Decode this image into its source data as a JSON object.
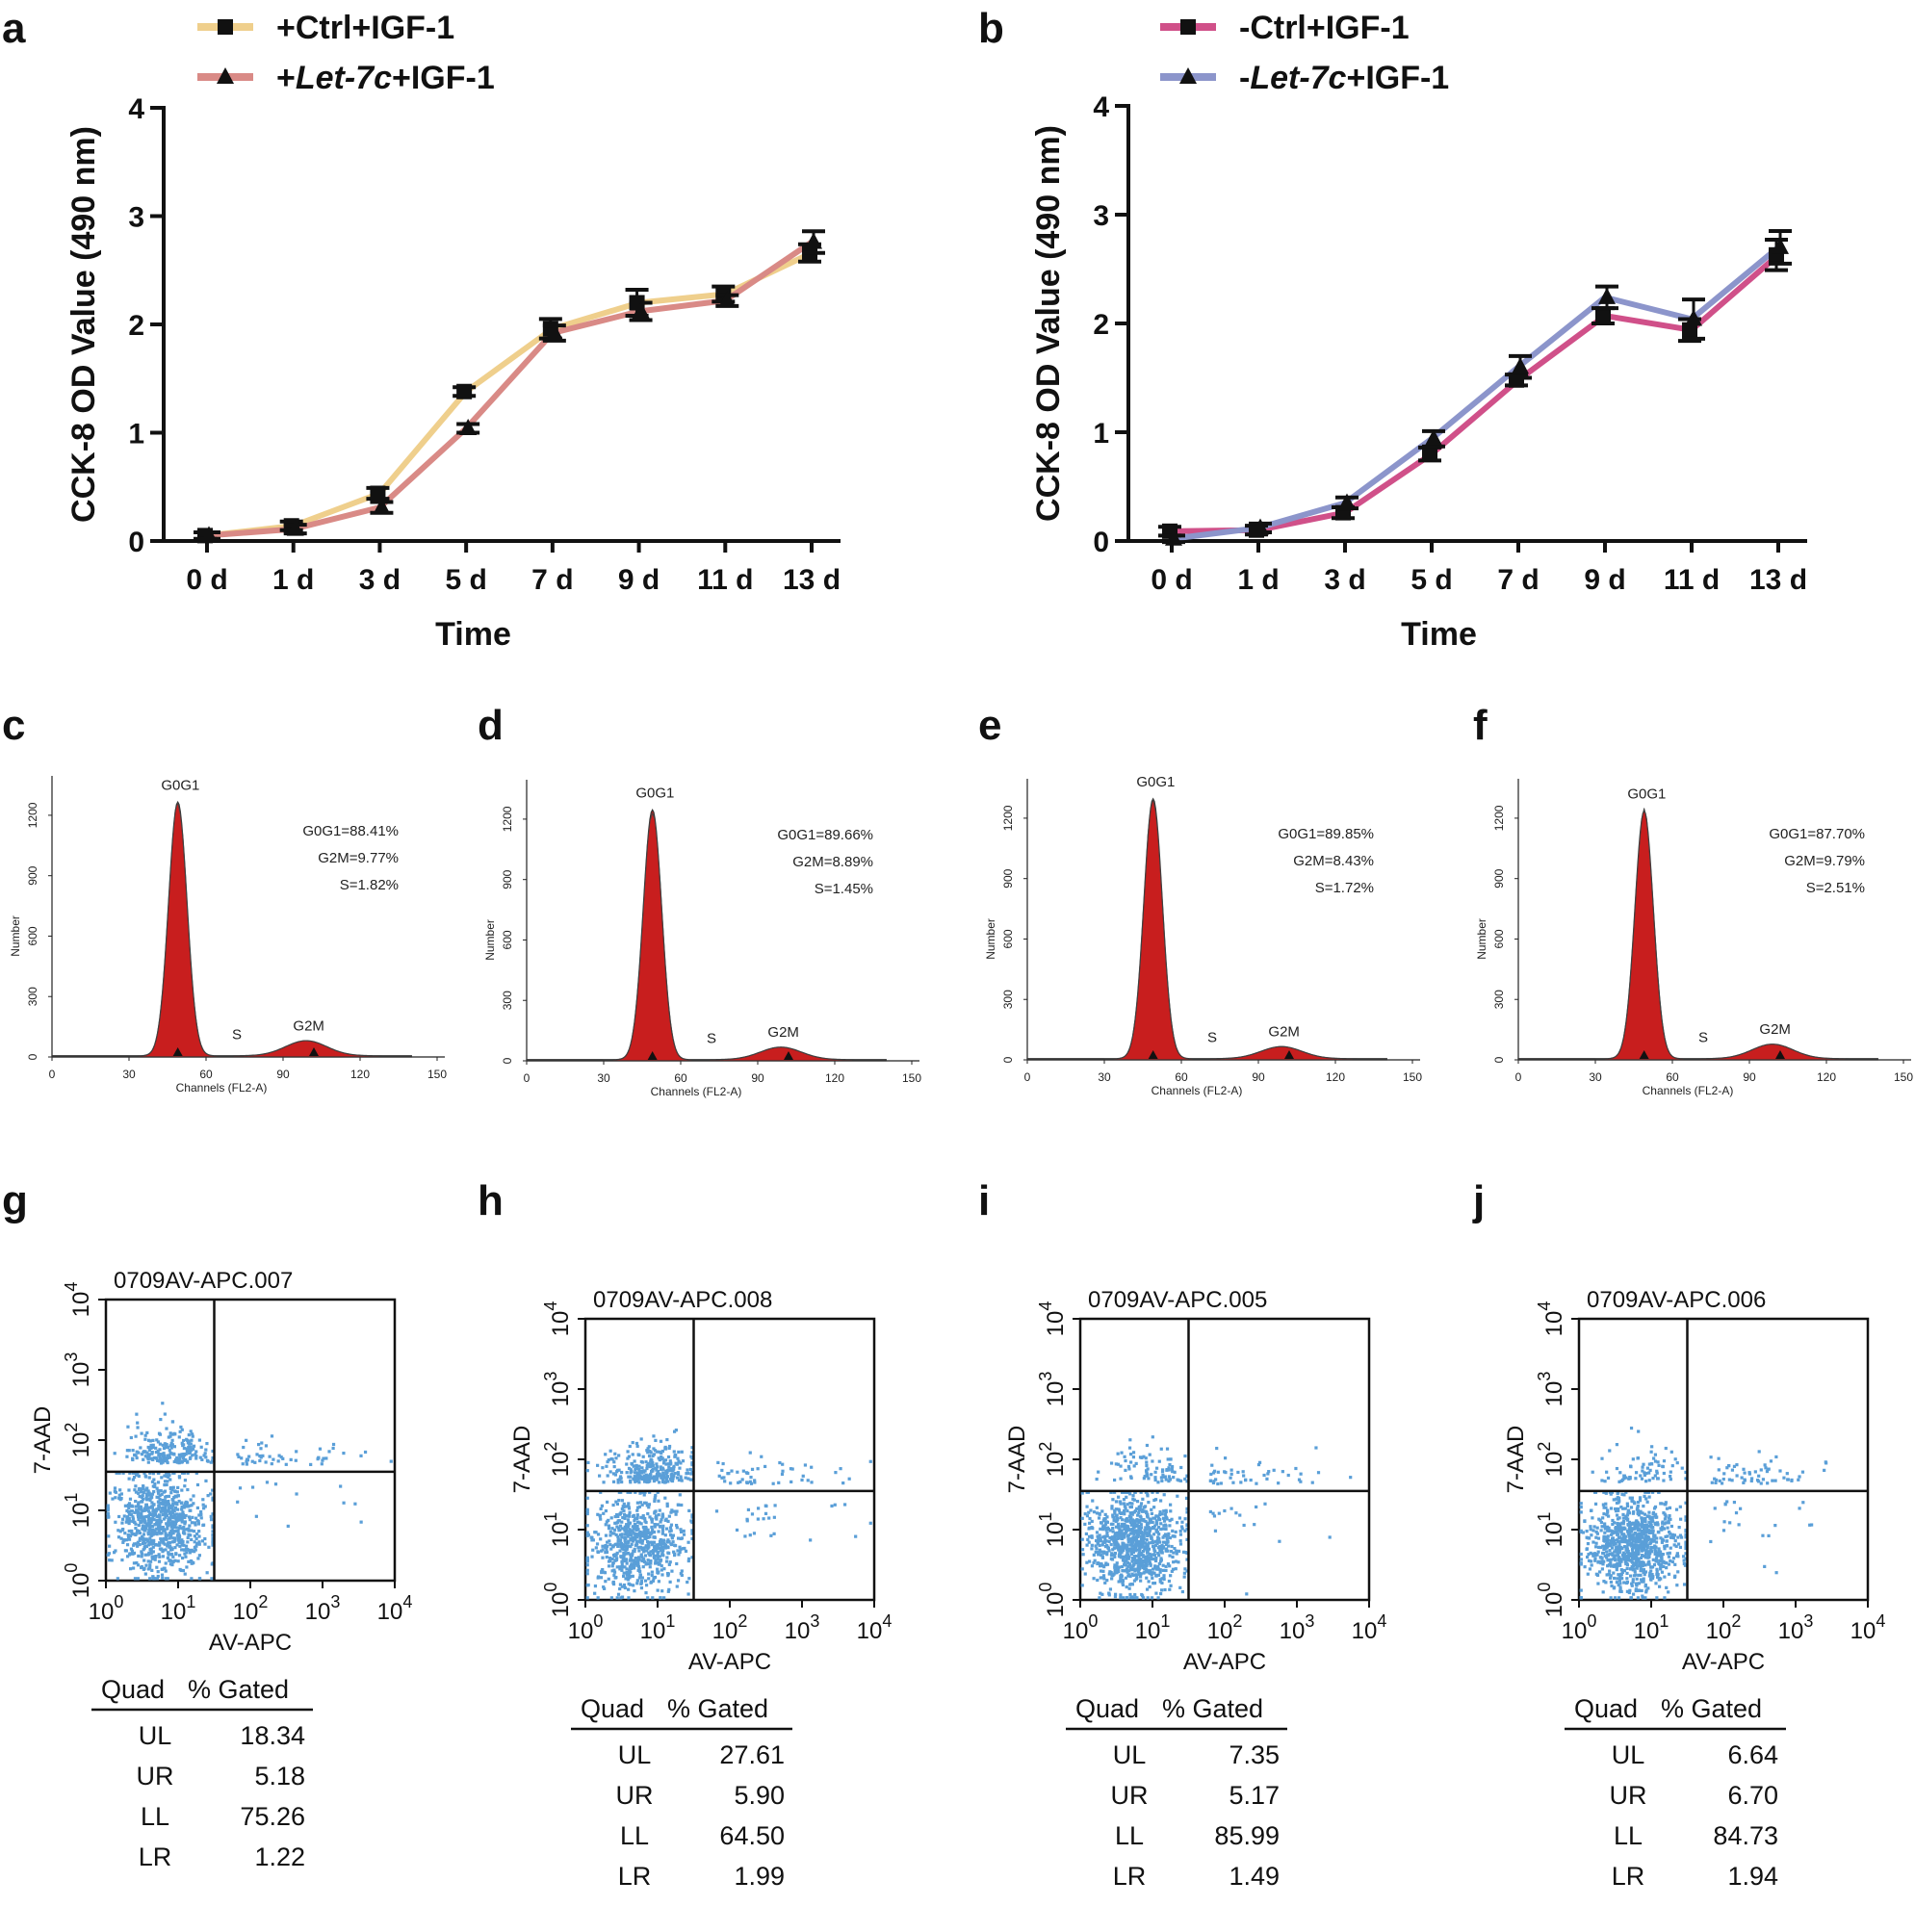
{
  "panel_labels": [
    "a",
    "b",
    "c",
    "d",
    "e",
    "f",
    "g",
    "h",
    "i",
    "j"
  ],
  "chart_data": [
    {
      "panel": "a",
      "type": "line",
      "categories": [
        "0 d",
        "1 d",
        "3 d",
        "5 d",
        "7 d",
        "9 d",
        "11 d",
        "13 d"
      ],
      "xlabel": "Time",
      "ylabel": "CCK-8 OD Value (490 nm)",
      "ylim": [
        0,
        4
      ],
      "yticks": [
        "0",
        "1",
        "2",
        "3",
        "4"
      ],
      "series": [
        {
          "name_prefix": "+Ctrl+IGF-1",
          "name_italic": "",
          "name_suffix": "",
          "marker": "square",
          "color": "#EFCF8C",
          "values": [
            0.05,
            0.14,
            0.44,
            1.38,
            1.96,
            2.2,
            2.28,
            2.66
          ],
          "errors": [
            0.03,
            0.04,
            0.05,
            0.04,
            0.09,
            0.12,
            0.07,
            0.08
          ]
        },
        {
          "name_prefix": "+",
          "name_italic": "Let-7c",
          "name_suffix": "+IGF-1",
          "marker": "triangle",
          "color": "#D98A86",
          "values": [
            0.05,
            0.11,
            0.31,
            1.04,
            1.92,
            2.12,
            2.22,
            2.76
          ],
          "errors": [
            0.03,
            0.04,
            0.05,
            0.04,
            0.07,
            0.08,
            0.05,
            0.1
          ]
        }
      ]
    },
    {
      "panel": "b",
      "type": "line",
      "categories": [
        "0 d",
        "1 d",
        "3 d",
        "5 d",
        "7 d",
        "9 d",
        "11 d",
        "13 d"
      ],
      "xlabel": "Time",
      "ylabel": "CCK-8 OD Value (490 nm)",
      "ylim": [
        0,
        4
      ],
      "yticks": [
        "0",
        "1",
        "2",
        "3",
        "4"
      ],
      "series": [
        {
          "name_prefix": "-Ctrl+IGF-1",
          "name_italic": "",
          "name_suffix": "",
          "marker": "square",
          "color": "#D05089",
          "values": [
            0.09,
            0.1,
            0.26,
            0.8,
            1.48,
            2.07,
            1.94,
            2.63
          ],
          "errors": [
            0.04,
            0.04,
            0.05,
            0.06,
            0.05,
            0.07,
            0.1,
            0.14
          ]
        },
        {
          "name_prefix": "-",
          "name_italic": "Let-7c",
          "name_suffix": "+IGF-1",
          "marker": "triangle",
          "color": "#8C95CB",
          "values": [
            0.02,
            0.12,
            0.35,
            0.94,
            1.6,
            2.24,
            2.04,
            2.7
          ],
          "errors": [
            0.03,
            0.04,
            0.05,
            0.07,
            0.1,
            0.1,
            0.18,
            0.15
          ]
        }
      ]
    },
    {
      "panel": "c",
      "type": "histogram",
      "xlabel": "Channels (FL2-A)",
      "ylabel": "Number",
      "xticks": [
        "0",
        "30",
        "60",
        "90",
        "120",
        "150"
      ],
      "yticks": [
        "0",
        "300",
        "600",
        "900",
        "1200"
      ],
      "peaks": {
        "g0g1": "G0G1",
        "s": "S",
        "g2m": "G2M"
      },
      "stats": [
        "G0G1=88.41%",
        "G2M=9.77%",
        "S=1.82%"
      ],
      "g0g1_height": 1260,
      "g2m_height": 75
    },
    {
      "panel": "d",
      "type": "histogram",
      "xlabel": "Channels (FL2-A)",
      "ylabel": "Number",
      "xticks": [
        "0",
        "30",
        "60",
        "90",
        "120",
        "150"
      ],
      "yticks": [
        "0",
        "300",
        "600",
        "900",
        "1200"
      ],
      "peaks": {
        "g0g1": "G0G1",
        "s": "S",
        "g2m": "G2M"
      },
      "stats": [
        "G0G1=89.66%",
        "G2M=8.89%",
        "S=1.45%"
      ],
      "g0g1_height": 1240,
      "g2m_height": 62
    },
    {
      "panel": "e",
      "type": "histogram",
      "xlabel": "Channels (FL2-A)",
      "ylabel": "Number",
      "xticks": [
        "0",
        "30",
        "60",
        "90",
        "120",
        "150"
      ],
      "yticks": [
        "0",
        "300",
        "600",
        "900",
        "1200"
      ],
      "peaks": {
        "g0g1": "G0G1",
        "s": "S",
        "g2m": "G2M"
      },
      "stats": [
        "G0G1=89.85%",
        "G2M=8.43%",
        "S=1.72%"
      ],
      "g0g1_height": 1290,
      "g2m_height": 60
    },
    {
      "panel": "f",
      "type": "histogram",
      "xlabel": "Channels (FL2-A)",
      "ylabel": "Number",
      "xticks": [
        "0",
        "30",
        "60",
        "90",
        "120",
        "150"
      ],
      "yticks": [
        "0",
        "300",
        "600",
        "900",
        "1200"
      ],
      "peaks": {
        "g0g1": "G0G1",
        "s": "S",
        "g2m": "G2M"
      },
      "stats": [
        "G0G1=87.70%",
        "G2M=9.79%",
        "S=2.51%"
      ],
      "g0g1_height": 1230,
      "g2m_height": 72
    },
    {
      "panel": "g",
      "type": "scatter",
      "title": "0709AV-APC.007",
      "xlabel": "AV-APC",
      "ylabel": "7-AAD",
      "axis_ticks": [
        "10^0",
        "10^1",
        "10^2",
        "10^3",
        "10^4"
      ],
      "quadrant_gate": [
        1.5,
        1.55
      ],
      "table_headers": [
        "Quad",
        "% Gated"
      ],
      "table_rows": [
        [
          "UL",
          "18.34"
        ],
        [
          "UR",
          "5.18"
        ],
        [
          "LL",
          "75.26"
        ],
        [
          "LR",
          "1.22"
        ]
      ]
    },
    {
      "panel": "h",
      "type": "scatter",
      "title": "0709AV-APC.008",
      "xlabel": "AV-APC",
      "ylabel": "7-AAD",
      "axis_ticks": [
        "10^0",
        "10^1",
        "10^2",
        "10^3",
        "10^4"
      ],
      "quadrant_gate": [
        1.5,
        1.55
      ],
      "table_headers": [
        "Quad",
        "% Gated"
      ],
      "table_rows": [
        [
          "UL",
          "27.61"
        ],
        [
          "UR",
          "5.90"
        ],
        [
          "LL",
          "64.50"
        ],
        [
          "LR",
          "1.99"
        ]
      ]
    },
    {
      "panel": "i",
      "type": "scatter",
      "title": "0709AV-APC.005",
      "xlabel": "AV-APC",
      "ylabel": "7-AAD",
      "axis_ticks": [
        "10^0",
        "10^1",
        "10^2",
        "10^3",
        "10^4"
      ],
      "quadrant_gate": [
        1.5,
        1.55
      ],
      "table_headers": [
        "Quad",
        "% Gated"
      ],
      "table_rows": [
        [
          "UL",
          "7.35"
        ],
        [
          "UR",
          "5.17"
        ],
        [
          "LL",
          "85.99"
        ],
        [
          "LR",
          "1.49"
        ]
      ]
    },
    {
      "panel": "j",
      "type": "scatter",
      "title": "0709AV-APC.006",
      "xlabel": "AV-APC",
      "ylabel": "7-AAD",
      "axis_ticks": [
        "10^0",
        "10^1",
        "10^2",
        "10^3",
        "10^4"
      ],
      "quadrant_gate": [
        1.5,
        1.55
      ],
      "table_headers": [
        "Quad",
        "% Gated"
      ],
      "table_rows": [
        [
          "UL",
          "6.64"
        ],
        [
          "UR",
          "6.70"
        ],
        [
          "LL",
          "84.73"
        ],
        [
          "LR",
          "1.94"
        ]
      ]
    }
  ],
  "colors": {
    "histogram_fill": "#C81E1E",
    "scatter_dot": "#5A9FD8",
    "axis": "#111111"
  }
}
